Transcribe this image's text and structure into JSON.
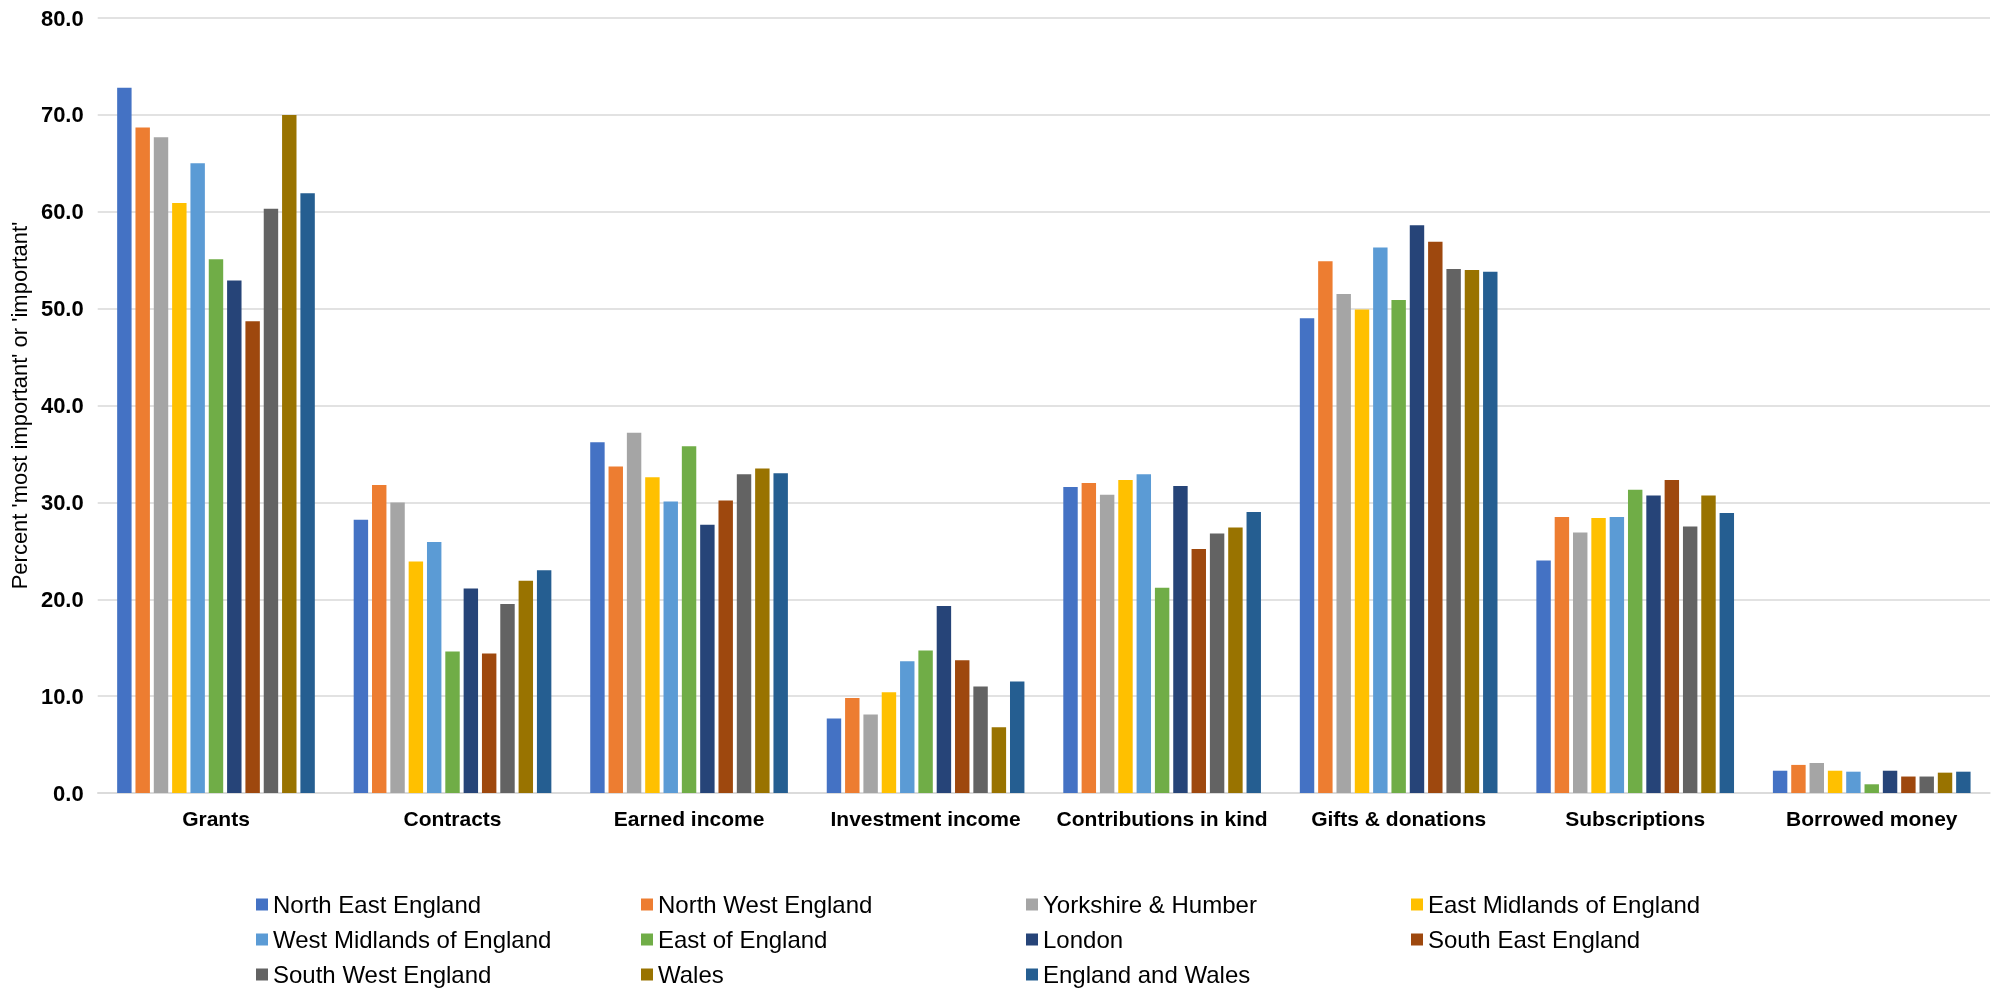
{
  "chart_data": {
    "type": "bar",
    "ylabel": "Percent 'most important' or 'important'",
    "categories": [
      "Grants",
      "Contracts",
      "Earned income",
      "Investment income",
      "Contributions in kind",
      "Gifts & donations",
      "Subscriptions",
      "Borrowed money"
    ],
    "series": [
      {
        "name": "North East England",
        "color": "#4472c4",
        "values": [
          72.8,
          28.2,
          36.2,
          7.7,
          31.6,
          49.0,
          24.0,
          2.3
        ]
      },
      {
        "name": "North West England",
        "color": "#ed7d31",
        "values": [
          68.7,
          31.8,
          33.7,
          9.8,
          32.0,
          54.9,
          28.5,
          2.9
        ]
      },
      {
        "name": "Yorkshire & Humber",
        "color": "#a5a5a5",
        "values": [
          67.7,
          30.0,
          37.2,
          8.1,
          30.8,
          51.5,
          26.9,
          3.1
        ]
      },
      {
        "name": "East Midlands of England",
        "color": "#ffc000",
        "values": [
          60.9,
          23.9,
          32.6,
          10.4,
          32.3,
          49.9,
          28.4,
          2.3
        ]
      },
      {
        "name": "West Midlands of England",
        "color": "#5b9bd5",
        "values": [
          65.0,
          25.9,
          30.1,
          13.6,
          32.9,
          56.3,
          28.5,
          2.2
        ]
      },
      {
        "name": "East of England",
        "color": "#70ad47",
        "values": [
          55.1,
          14.6,
          35.8,
          14.7,
          21.2,
          50.9,
          31.3,
          0.9
        ]
      },
      {
        "name": "London",
        "color": "#264478",
        "values": [
          52.9,
          21.1,
          27.7,
          19.3,
          31.7,
          58.6,
          30.7,
          2.3
        ]
      },
      {
        "name": "South East England",
        "color": "#9e480e",
        "values": [
          48.7,
          14.4,
          30.2,
          13.7,
          25.2,
          56.9,
          32.3,
          1.7
        ]
      },
      {
        "name": "South West England",
        "color": "#636363",
        "values": [
          60.3,
          19.5,
          32.9,
          11.0,
          26.8,
          54.1,
          27.5,
          1.7
        ]
      },
      {
        "name": "Wales",
        "color": "#997300",
        "values": [
          70.0,
          21.9,
          33.5,
          6.8,
          27.4,
          54.0,
          30.7,
          2.1
        ]
      },
      {
        "name": "England and Wales",
        "color": "#255e91",
        "values": [
          61.9,
          23.0,
          33.0,
          11.5,
          29.0,
          53.8,
          28.9,
          2.2
        ]
      }
    ],
    "ylim": [
      0,
      80
    ],
    "yticks": [
      {
        "value": 0,
        "label": "0.0"
      },
      {
        "value": 10,
        "label": "10.0"
      },
      {
        "value": 20,
        "label": "20.0"
      },
      {
        "value": 30,
        "label": "30.0"
      },
      {
        "value": 40,
        "label": "40.0"
      },
      {
        "value": 50,
        "label": "50.0"
      },
      {
        "value": 60,
        "label": "60.0"
      },
      {
        "value": 70,
        "label": "70.0"
      },
      {
        "value": 80,
        "label": "80.0"
      }
    ],
    "grid": "y",
    "legend": "bottom"
  }
}
